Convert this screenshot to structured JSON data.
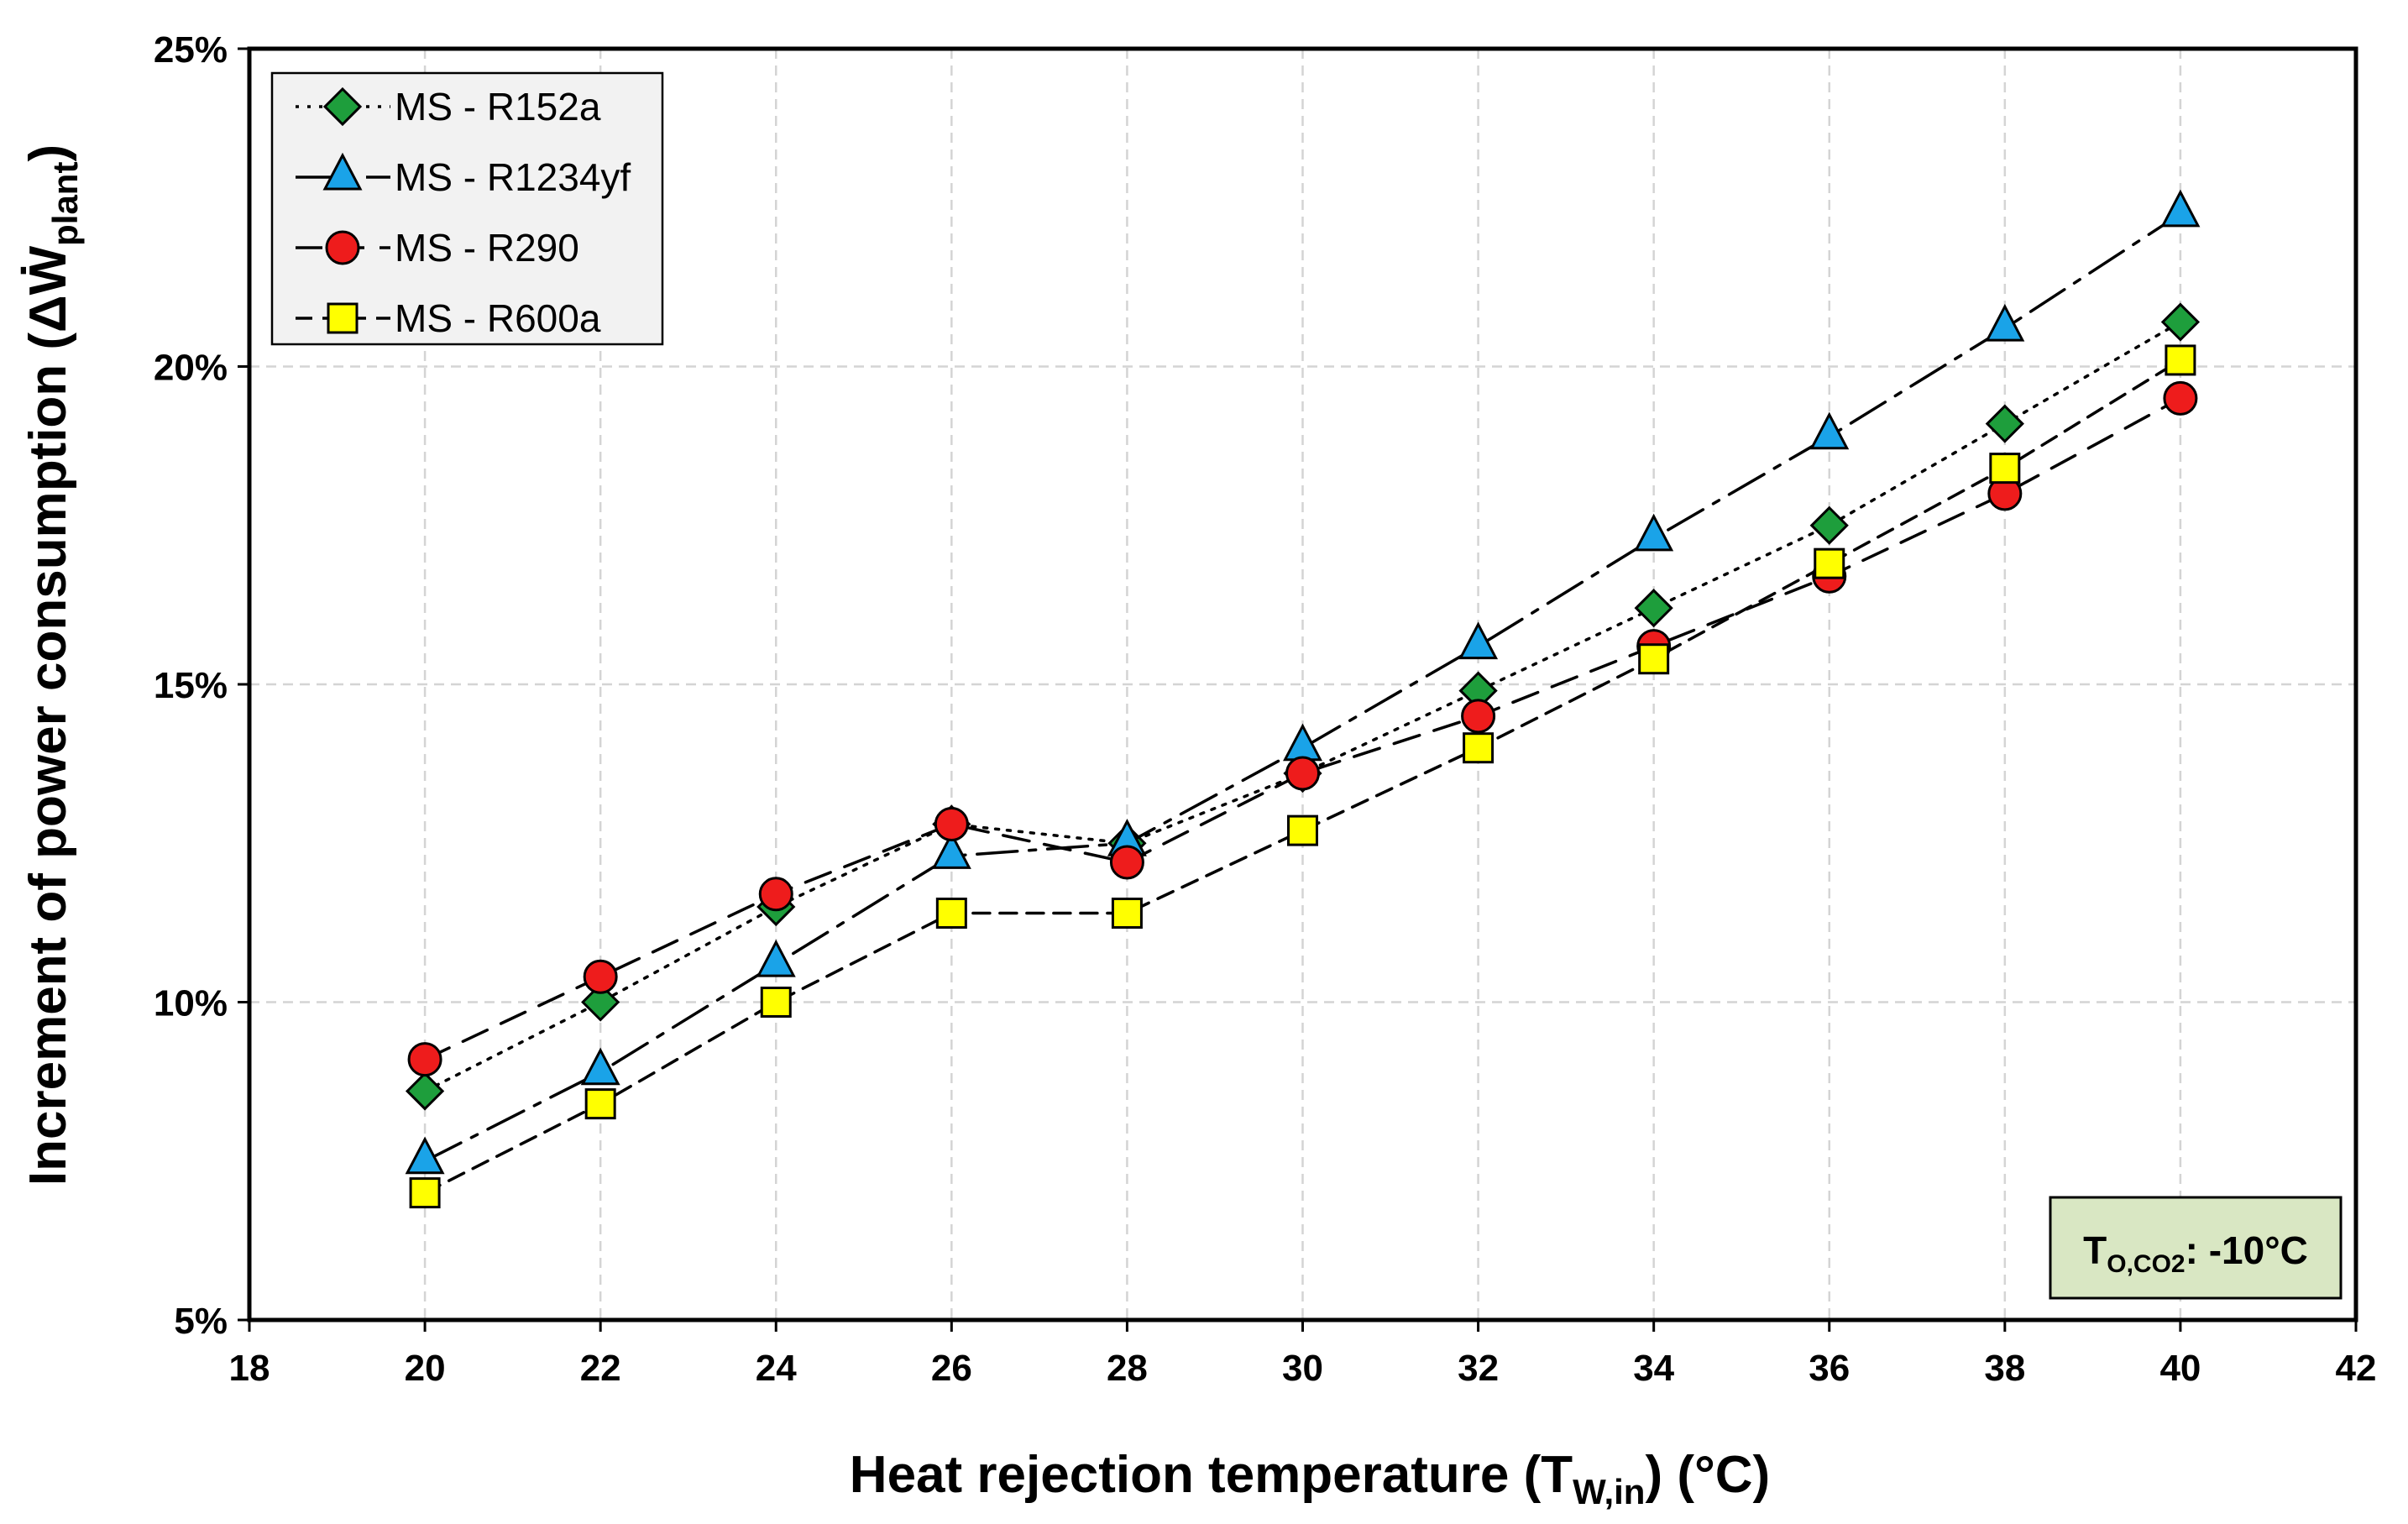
{
  "chart_data": {
    "type": "line",
    "title": "",
    "xlabel": {
      "main": "Heat rejection temperature (T",
      "sub": "W,in",
      "suffix": ") (°C)"
    },
    "ylabel": {
      "main": "Increment of power consumption (ΔẆ",
      "sub": "plant",
      "suffix": ")"
    },
    "xlim": [
      18,
      42
    ],
    "ylim": [
      5,
      25
    ],
    "xticks": [
      "18",
      "20",
      "22",
      "24",
      "26",
      "28",
      "30",
      "32",
      "34",
      "36",
      "38",
      "40",
      "42"
    ],
    "yticks": [
      "5%",
      "10%",
      "15%",
      "20%",
      "25%"
    ],
    "grid": true,
    "x": [
      20,
      22,
      24,
      26,
      28,
      30,
      32,
      34,
      36,
      38,
      40
    ],
    "series": [
      {
        "name": "MS - R152a",
        "marker": "diamond",
        "fill": "#1e9e3c",
        "dash": "dotted",
        "values": [
          8.6,
          10.0,
          11.5,
          12.8,
          12.5,
          13.6,
          14.9,
          16.2,
          17.5,
          19.1,
          20.7
        ]
      },
      {
        "name": "MS - R1234yf",
        "marker": "triangle",
        "fill": "#1aa3e8",
        "dash": "dashdot",
        "values": [
          7.5,
          8.9,
          10.6,
          12.3,
          12.5,
          14.0,
          15.6,
          17.3,
          18.9,
          20.6,
          22.4
        ]
      },
      {
        "name": "MS - R290",
        "marker": "circle",
        "fill": "#ee1c1c",
        "dash": "dashed",
        "values": [
          9.1,
          10.4,
          11.7,
          12.8,
          12.2,
          13.6,
          14.5,
          15.6,
          16.7,
          18.0,
          19.5
        ]
      },
      {
        "name": "MS - R600a",
        "marker": "square",
        "fill": "#ffff00",
        "dash": "shortdash",
        "values": [
          7.0,
          8.4,
          10.0,
          11.4,
          11.4,
          12.7,
          14.0,
          15.4,
          16.9,
          18.4,
          20.1
        ]
      }
    ],
    "legend_position": "top-left",
    "annotation": {
      "main": "T",
      "sub": "O,CO2",
      "suffix": ": -10°C",
      "fill": "#d9e7c3"
    }
  }
}
